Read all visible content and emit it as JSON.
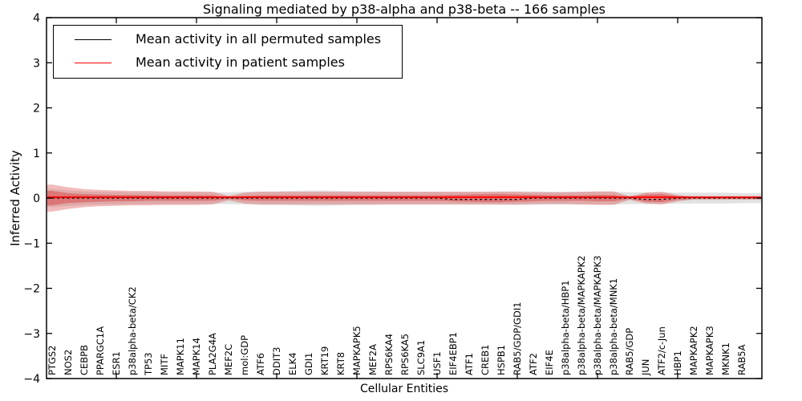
{
  "figure": {
    "title": "Signaling mediated by p38-alpha and p38-beta -- 166 samples",
    "xlabel": "Cellular Entities",
    "ylabel": "Inferred Activity"
  },
  "legend": {
    "position": "upper left",
    "items": [
      {
        "label": "Mean activity in all permuted samples",
        "color": "#000000"
      },
      {
        "label": "Mean activity in patient samples",
        "color": "#ff0000"
      }
    ]
  },
  "chart_data": {
    "type": "line",
    "title": "Signaling mediated by p38-alpha and p38-beta -- 166 samples",
    "xlabel": "Cellular Entities",
    "ylabel": "Inferred Activity",
    "ylim": [
      -4,
      4
    ],
    "yticks": [
      "-4",
      "-3",
      "-2",
      "-1",
      "0",
      "1",
      "2",
      "3",
      "4"
    ],
    "grid": false,
    "legend_position": "upper left",
    "sample_count_in_title": 166,
    "categories": [
      "PTGS2",
      "NOS2",
      "CEBPB",
      "PPARGC1A",
      "ESR1",
      "p38alpha-beta/CK2",
      "TP53",
      "MITF",
      "MAPK11",
      "MAPK14",
      "PLA2G4A",
      "MEF2C",
      "mol:GDP",
      "ATF6",
      "DDIT3",
      "ELK4",
      "GDI1",
      "KRT19",
      "KRT8",
      "MAPKAPK5",
      "MEF2A",
      "RPS6KA4",
      "RPS6KA5",
      "SLC9A1",
      "USF1",
      "EIF4EBP1",
      "ATF1",
      "CREB1",
      "HSPB1",
      "RAB5/GDP/GDI1",
      "ATF2",
      "EIF4E",
      "p38alpha-beta/HBP1",
      "p38alpha-beta/MAPKAPK2",
      "p38alpha-beta/MAPKAPK3",
      "p38alpha-beta/MNK1",
      "RAB5/GDP",
      "JUN",
      "ATF2/c-Jun",
      "HBP1",
      "MAPKAPK2",
      "MAPKAPK3",
      "MKNK1",
      "RAB5A"
    ],
    "series": [
      {
        "name": "Mean activity in all permuted samples",
        "color": "#000000",
        "style": "dashed",
        "values": [
          0,
          0,
          0,
          0,
          0,
          0,
          0,
          0,
          0,
          0,
          0,
          0,
          0,
          0,
          0,
          0,
          0,
          0,
          0,
          0,
          0,
          0,
          0,
          0,
          0,
          -0.03,
          -0.03,
          -0.03,
          -0.03,
          -0.03,
          0,
          0,
          0,
          0,
          0,
          0,
          0,
          -0.03,
          -0.03,
          0,
          0,
          0,
          0,
          0
        ]
      },
      {
        "name": "Mean activity in patient samples",
        "color": "#ff0000",
        "style": "solid",
        "values": [
          0.02,
          0.02,
          0.02,
          0.02,
          0.02,
          0.02,
          0.02,
          0.02,
          0.02,
          0.02,
          0.02,
          0.02,
          0.02,
          0.02,
          0.02,
          0.02,
          0.02,
          0.02,
          0.02,
          0.02,
          0.02,
          0.02,
          0.02,
          0.02,
          0.02,
          0.02,
          0.02,
          0.02,
          0.02,
          0.02,
          0.02,
          0.02,
          0.02,
          0.02,
          0.02,
          0.02,
          0.02,
          0.02,
          0.02,
          0.02,
          0.02,
          0.02,
          0.02,
          0.02
        ]
      }
    ],
    "bands": [
      {
        "name": "permuted-samples-spread",
        "color": "#c8c8c8",
        "opacity": 0.55,
        "half_width": [
          0.2,
          0.17,
          0.15,
          0.14,
          0.14,
          0.13,
          0.13,
          0.13,
          0.13,
          0.13,
          0.13,
          0.13,
          0.14,
          0.15,
          0.15,
          0.16,
          0.17,
          0.17,
          0.16,
          0.15,
          0.15,
          0.14,
          0.14,
          0.14,
          0.14,
          0.14,
          0.14,
          0.14,
          0.15,
          0.15,
          0.15,
          0.14,
          0.14,
          0.14,
          0.14,
          0.14,
          0.13,
          0.13,
          0.13,
          0.12,
          0.12,
          0.12,
          0.12,
          0.11
        ]
      },
      {
        "name": "patient-samples-outer-spread",
        "color": "#dd5c5c",
        "opacity": 0.42,
        "half_width": [
          0.3,
          0.24,
          0.2,
          0.18,
          0.17,
          0.16,
          0.16,
          0.15,
          0.15,
          0.15,
          0.14,
          0.05,
          0.12,
          0.14,
          0.14,
          0.14,
          0.14,
          0.14,
          0.14,
          0.14,
          0.14,
          0.14,
          0.14,
          0.14,
          0.14,
          0.14,
          0.14,
          0.14,
          0.14,
          0.14,
          0.13,
          0.13,
          0.13,
          0.14,
          0.15,
          0.15,
          0.04,
          0.12,
          0.14,
          0.07,
          0.03,
          0.03,
          0.03,
          0.03
        ]
      },
      {
        "name": "patient-samples-inner-spread",
        "color": "#d94545",
        "opacity": 0.5,
        "half_width": [
          0.16,
          0.11,
          0.09,
          0.08,
          0.07,
          0.07,
          0.06,
          0.06,
          0.06,
          0.06,
          0.06,
          0.02,
          0.05,
          0.06,
          0.06,
          0.06,
          0.06,
          0.06,
          0.06,
          0.06,
          0.06,
          0.06,
          0.06,
          0.06,
          0.06,
          0.07,
          0.08,
          0.09,
          0.09,
          0.08,
          0.07,
          0.06,
          0.06,
          0.06,
          0.07,
          0.07,
          0.02,
          0.08,
          0.09,
          0.04,
          0.02,
          0.02,
          0.02,
          0.02
        ]
      }
    ]
  }
}
